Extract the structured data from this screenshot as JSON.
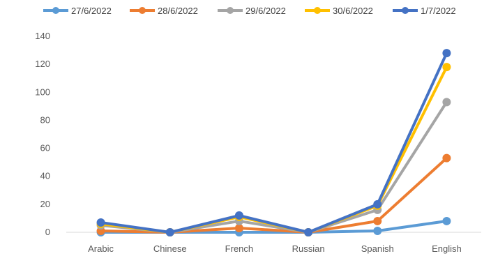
{
  "chart_data": {
    "type": "line",
    "categories": [
      "Arabic",
      "Chinese",
      "French",
      "Russian",
      "Spanish",
      "English"
    ],
    "ylim": [
      0,
      140
    ],
    "yticks": [
      0,
      20,
      40,
      60,
      80,
      100,
      120,
      140
    ],
    "grid": false,
    "legend_position": "top",
    "series": [
      {
        "name": "27/6/2022",
        "color": "#5B9BD5",
        "values": [
          0,
          0,
          0,
          0,
          1,
          8
        ]
      },
      {
        "name": "28/6/2022",
        "color": "#ED7D31",
        "values": [
          1,
          0,
          3,
          0,
          8,
          53
        ]
      },
      {
        "name": "29/6/2022",
        "color": "#A5A5A5",
        "values": [
          5,
          0,
          8,
          0,
          16,
          93
        ]
      },
      {
        "name": "30/6/2022",
        "color": "#FFC000",
        "values": [
          6,
          0,
          11,
          0,
          19,
          118
        ]
      },
      {
        "name": "1/7/2022",
        "color": "#4472C4",
        "values": [
          7,
          0,
          12,
          0,
          20,
          128
        ]
      }
    ]
  }
}
